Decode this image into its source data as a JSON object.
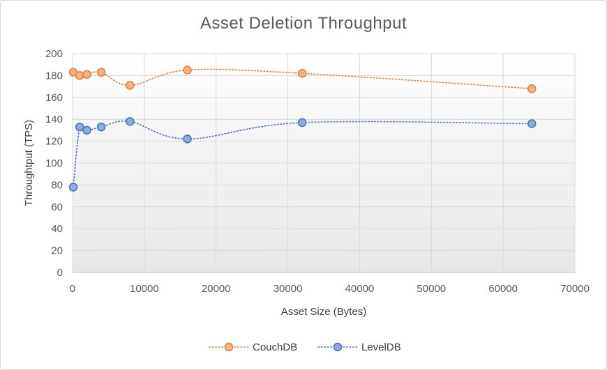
{
  "chart_data": {
    "type": "scatter",
    "title": "Asset Deletion Throughput",
    "xlabel": "Asset Size (Bytes)",
    "ylabel": "Throughtput (TPS)",
    "xlim": [
      0,
      70000
    ],
    "ylim": [
      0,
      200
    ],
    "x_ticks": [
      "0",
      "10000",
      "20000",
      "30000",
      "40000",
      "50000",
      "60000",
      "70000"
    ],
    "y_ticks": [
      "0",
      "20",
      "40",
      "60",
      "80",
      "100",
      "120",
      "140",
      "160",
      "180",
      "200"
    ],
    "grid": true,
    "legend_position": "bottom",
    "series": [
      {
        "name": "CouchDB",
        "color": "#ED7D31",
        "marker_fill": "#F4B183",
        "x": [
          100,
          1000,
          2000,
          4000,
          8000,
          16000,
          32000,
          64000
        ],
        "y": [
          183,
          180,
          181,
          183,
          171,
          185,
          182,
          168
        ]
      },
      {
        "name": "LevelDB",
        "color": "#4472C4",
        "marker_fill": "#8FAADC",
        "x": [
          100,
          1000,
          2000,
          4000,
          8000,
          16000,
          32000,
          64000
        ],
        "y": [
          78,
          133,
          130,
          133,
          138,
          122,
          137,
          136
        ]
      }
    ]
  }
}
